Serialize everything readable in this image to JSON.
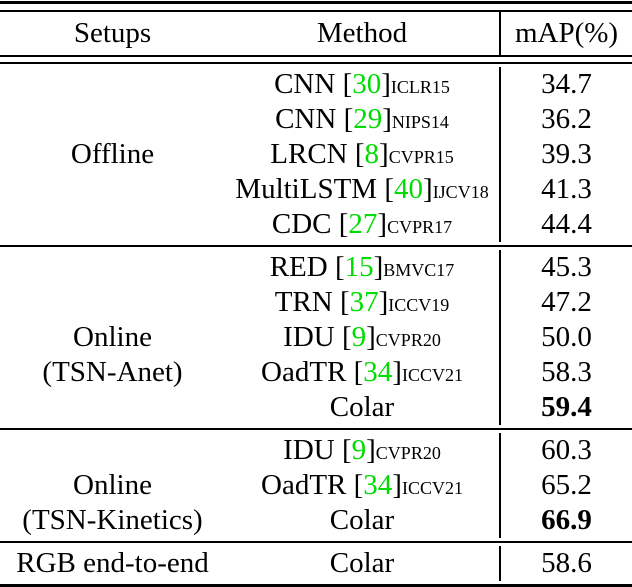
{
  "punct": {
    "open": "[",
    "close": "]"
  },
  "colors": {
    "cite_green": "#00DC00",
    "text": "#000000",
    "background": "#ffffff",
    "rule": "#000000"
  },
  "header": {
    "setups": "Setups",
    "method": "Method",
    "map": "mAP(%)"
  },
  "sections": [
    {
      "setup": {
        "line1": "Offline"
      },
      "rows": [
        {
          "method": "CNN ",
          "cite": "30",
          "venue": "ICLR15",
          "value": "34.7"
        },
        {
          "method": "CNN ",
          "cite": "29",
          "venue": "NIPS14",
          "value": "36.2"
        },
        {
          "method": "LRCN ",
          "cite": "8",
          "venue": "CVPR15",
          "value": "39.3"
        },
        {
          "method": "MultiLSTM ",
          "cite": "40",
          "venue": "IJCV18",
          "value": "41.3"
        },
        {
          "method": "CDC ",
          "cite": "27",
          "venue": "CVPR17",
          "value": "44.4"
        }
      ]
    },
    {
      "setup": {
        "line1": "Online",
        "line2": "(TSN-Anet)"
      },
      "rows": [
        {
          "method": "RED ",
          "cite": "15",
          "venue": "BMVC17",
          "value": "45.3"
        },
        {
          "method": "TRN ",
          "cite": "37",
          "venue": "ICCV19",
          "value": "47.2"
        },
        {
          "method": "IDU ",
          "cite": "9",
          "venue": "CVPR20",
          "value": "50.0"
        },
        {
          "method": "OadTR ",
          "cite": "34",
          "venue": "ICCV21",
          "value": "58.3"
        },
        {
          "method": "Colar",
          "value": "59.4",
          "bold": true
        }
      ]
    },
    {
      "setup": {
        "line1": "Online",
        "line2": "(TSN-Kinetics)"
      },
      "rows": [
        {
          "method": "IDU ",
          "cite": "9",
          "venue": "CVPR20",
          "value": "60.3"
        },
        {
          "method": "OadTR ",
          "cite": "34",
          "venue": "ICCV21",
          "value": "65.2"
        },
        {
          "method": "Colar",
          "value": "66.9",
          "bold": true
        }
      ]
    },
    {
      "setup": {
        "line1": "RGB end-to-end"
      },
      "rows": [
        {
          "method": "Colar",
          "value": "58.6"
        }
      ]
    }
  ]
}
